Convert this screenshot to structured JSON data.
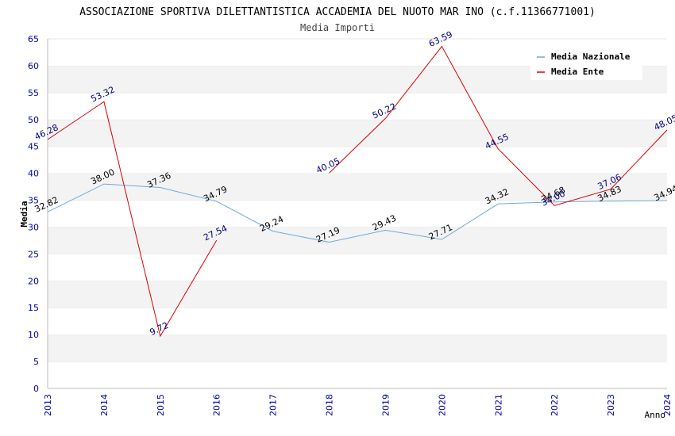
{
  "chart_data": {
    "type": "line",
    "title": "ASSOCIAZIONE SPORTIVA DILETTANTISTICA ACCADEMIA DEL NUOTO MAR INO (c.f.11366771001)",
    "subtitle": "Media Importi",
    "xlabel": "Anno",
    "ylabel": "Media",
    "ylim": [
      0,
      65
    ],
    "yticks": [
      0,
      5,
      10,
      15,
      20,
      25,
      30,
      35,
      40,
      45,
      50,
      55,
      60,
      65
    ],
    "x": [
      "2013",
      "2014",
      "2015",
      "2016",
      "2017",
      "2018",
      "2019",
      "2020",
      "2021",
      "2022",
      "2023",
      "2024"
    ],
    "grid": "horizontal bands",
    "legend_position": "top-right",
    "series": [
      {
        "name": "Media Nazionale",
        "color": "#6fa8dc",
        "label_color": "#000000",
        "values": [
          32.82,
          38.0,
          37.36,
          34.79,
          29.24,
          27.19,
          29.43,
          27.71,
          34.32,
          34.68,
          34.83,
          34.94
        ],
        "labels": [
          "32.82",
          "38.00",
          "37.36",
          "34.79",
          "29.24",
          "27.19",
          "29.43",
          "27.71",
          "34.32",
          "34.68",
          "34.83",
          "34.94"
        ]
      },
      {
        "name": "Media Ente",
        "color": "#dd0000",
        "label_color": "#000080",
        "values": [
          46.28,
          53.32,
          9.72,
          27.54,
          null,
          40.05,
          50.22,
          63.59,
          44.55,
          34.0,
          37.06,
          48.05
        ],
        "labels": [
          "46.28",
          "53.32",
          "9.72",
          "27.54",
          null,
          "40.05",
          "50.22",
          "63.59",
          "44.55",
          "34.00",
          "37.06",
          "48.05"
        ]
      }
    ]
  }
}
